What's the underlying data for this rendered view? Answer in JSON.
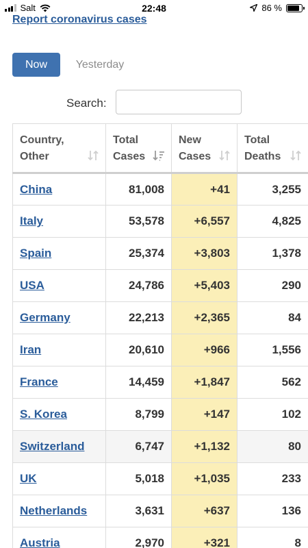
{
  "status_bar": {
    "carrier": "Salt",
    "time": "22:48",
    "battery": "86 %",
    "battery_level": 0.86
  },
  "report_link": "Report coronavirus cases",
  "tabs": [
    {
      "label": "Now",
      "active": true
    },
    {
      "label": "Yesterday",
      "active": false
    }
  ],
  "search": {
    "label": "Search:",
    "value": ""
  },
  "table": {
    "headers": [
      {
        "line1": "Country,",
        "line2": "Other",
        "icon": "sort-icon"
      },
      {
        "line1": "Total",
        "line2": "Cases",
        "icon": "sort-desc-icon"
      },
      {
        "line1": "New",
        "line2": "Cases",
        "icon": "sort-icon"
      },
      {
        "line1": "Total",
        "line2": "Deaths",
        "icon": "sort-icon"
      }
    ],
    "rows": [
      {
        "country": "China",
        "total_cases": "81,008",
        "new_cases": "+41",
        "total_deaths": "3,255"
      },
      {
        "country": "Italy",
        "total_cases": "53,578",
        "new_cases": "+6,557",
        "total_deaths": "4,825"
      },
      {
        "country": "Spain",
        "total_cases": "25,374",
        "new_cases": "+3,803",
        "total_deaths": "1,378"
      },
      {
        "country": "USA",
        "total_cases": "24,786",
        "new_cases": "+5,403",
        "total_deaths": "290"
      },
      {
        "country": "Germany",
        "total_cases": "22,213",
        "new_cases": "+2,365",
        "total_deaths": "84"
      },
      {
        "country": "Iran",
        "total_cases": "20,610",
        "new_cases": "+966",
        "total_deaths": "1,556"
      },
      {
        "country": "France",
        "total_cases": "14,459",
        "new_cases": "+1,847",
        "total_deaths": "562"
      },
      {
        "country": "S. Korea",
        "total_cases": "8,799",
        "new_cases": "+147",
        "total_deaths": "102"
      },
      {
        "country": "Switzerland",
        "total_cases": "6,747",
        "new_cases": "+1,132",
        "total_deaths": "80"
      },
      {
        "country": "UK",
        "total_cases": "5,018",
        "new_cases": "+1,035",
        "total_deaths": "233"
      },
      {
        "country": "Netherlands",
        "total_cases": "3,631",
        "new_cases": "+637",
        "total_deaths": "136"
      },
      {
        "country": "Austria",
        "total_cases": "2,970",
        "new_cases": "+321",
        "total_deaths": "8"
      }
    ]
  },
  "colors": {
    "link": "#2a5c9a",
    "active_tab": "#3f72b0",
    "new_cases_bg": "#fbefb8"
  }
}
